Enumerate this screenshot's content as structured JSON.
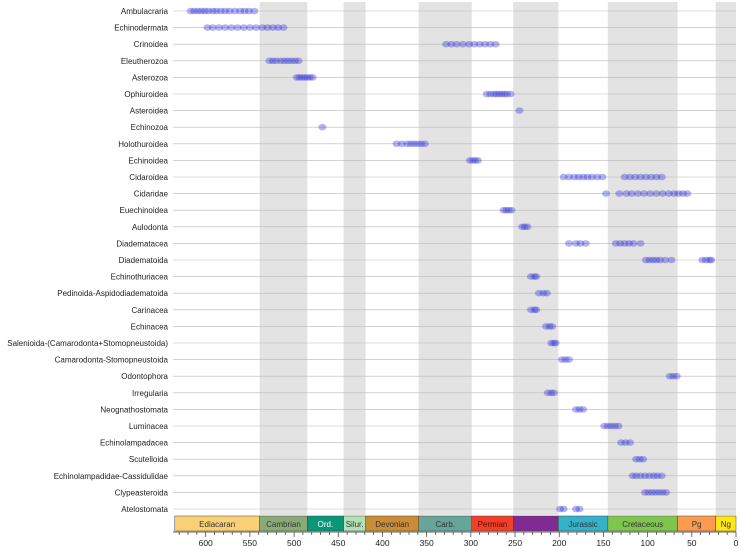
{
  "chart_data": {
    "type": "scatter",
    "title": "",
    "xlabel": "",
    "ylabel": "",
    "x_axis_reversed": true,
    "xlim": [
      637,
      0
    ],
    "x_ticks": [
      600,
      550,
      500,
      450,
      400,
      350,
      300,
      250,
      200,
      150,
      100,
      50,
      0
    ],
    "grid": "horizontal lines at each clade row",
    "point_color": "#3b3bd9",
    "periods": [
      {
        "name": "Ediacaran",
        "start": 635,
        "end": 539,
        "color": "#f9d077",
        "shaded": false
      },
      {
        "name": "Cambrian",
        "start": 539,
        "end": 485,
        "color": "#8aab78",
        "shaded": true
      },
      {
        "name": "Ord.",
        "start": 485,
        "end": 444,
        "color": "#0a9679",
        "shaded": false
      },
      {
        "name": "Silur.",
        "start": 444,
        "end": 419,
        "color": "#b3e1b6",
        "shaded": true
      },
      {
        "name": "Devonian",
        "start": 419,
        "end": 359,
        "color": "#cb8c37",
        "shaded": false
      },
      {
        "name": "Carb.",
        "start": 359,
        "end": 299,
        "color": "#67a599",
        "shaded": true
      },
      {
        "name": "Permian",
        "start": 299,
        "end": 252,
        "color": "#f04028",
        "shaded": false
      },
      {
        "name": "",
        "start": 252,
        "end": 201,
        "color": "#812b92",
        "shaded": true
      },
      {
        "name": "Jurassic",
        "start": 201,
        "end": 145,
        "color": "#34b2c9",
        "shaded": false
      },
      {
        "name": "Cretaceous",
        "start": 145,
        "end": 66,
        "color": "#7fc64e",
        "shaded": true
      },
      {
        "name": "Pg",
        "start": 66,
        "end": 23,
        "color": "#fd9a52",
        "shaded": false
      },
      {
        "name": "Ng",
        "start": 23,
        "end": 0,
        "color": "#ffe619",
        "shaded": true
      }
    ],
    "categories": [
      "Ambulacraria",
      "Echinodermata",
      "Crinoidea",
      "Eleutherozoa",
      "Asterozoa",
      "Ophiuroidea",
      "Asteroidea",
      "Echinozoa",
      "Holothuroidea",
      "Echinoidea",
      "Cidaroidea",
      "Cidaridae",
      "Euechinoidea",
      "Aulodonta",
      "Diadematacea",
      "Diadematoida",
      "Echinothuriacea",
      "Pedinoida-Aspidodiadematoida",
      "Carinacea",
      "Echinacea",
      "Salenioida-(Camarodonta+Stomopneustoida)",
      "Camarodonta-Stomopneustoida",
      "Odontophora",
      "Irregularia",
      "Neognathostomata",
      "Luminacea",
      "Echinolampadacea",
      "Scutelloida",
      "Echinolampadidae-Cassidulidae",
      "Clypeasteroida",
      "Atelostomata"
    ],
    "series": [
      {
        "values": [
          617,
          613,
          609,
          605,
          601,
          597,
          592,
          588,
          583,
          578,
          573,
          567,
          561,
          556,
          551,
          545
        ]
      },
      {
        "values": [
          598,
          592,
          585,
          578,
          571,
          564,
          557,
          550,
          543,
          536,
          530,
          524,
          518,
          512
        ]
      },
      {
        "values": [
          328,
          322,
          316,
          309,
          302,
          296,
          290,
          284,
          278,
          272
        ]
      },
      {
        "values": [
          528,
          524,
          520,
          515,
          511,
          507,
          503,
          499,
          495
        ]
      },
      {
        "values": [
          497,
          494,
          491,
          488,
          485,
          482,
          479
        ]
      },
      {
        "values": [
          282,
          278,
          274,
          271,
          268,
          265,
          262,
          259,
          255
        ]
      },
      {
        "values": [
          245
        ]
      },
      {
        "values": [
          468
        ]
      },
      {
        "values": [
          384,
          378,
          372,
          368,
          364,
          360,
          356,
          352
        ]
      },
      {
        "values": [
          301,
          298,
          295,
          292
        ]
      },
      {
        "values": [
          195,
          189,
          183,
          178,
          173,
          168,
          163,
          157,
          151,
          126,
          120,
          114,
          108,
          102,
          96,
          90,
          84
        ]
      },
      {
        "values": [
          147,
          132,
          124,
          118,
          111,
          104,
          97,
          90,
          83,
          76,
          70,
          65,
          60,
          55
        ]
      },
      {
        "values": [
          263,
          260,
          257,
          254
        ]
      },
      {
        "values": [
          242,
          239,
          236
        ]
      },
      {
        "values": [
          189,
          181,
          176,
          170,
          136,
          131,
          126,
          121,
          116,
          108
        ]
      },
      {
        "values": [
          102,
          98,
          94,
          90,
          86,
          80,
          73,
          38,
          34,
          30,
          28
        ]
      },
      {
        "values": [
          232,
          228,
          226
        ]
      },
      {
        "values": [
          223,
          218,
          214
        ]
      },
      {
        "values": [
          232,
          228,
          226
        ]
      },
      {
        "values": [
          215,
          211,
          208
        ]
      },
      {
        "values": [
          209,
          206,
          204
        ]
      },
      {
        "values": [
          197,
          193,
          189
        ]
      },
      {
        "values": [
          75,
          71,
          67
        ]
      },
      {
        "values": [
          213,
          209,
          206
        ]
      },
      {
        "values": [
          181,
          177,
          173
        ]
      },
      {
        "values": [
          149,
          145,
          141,
          137,
          133
        ]
      },
      {
        "values": [
          130,
          125,
          120
        ]
      },
      {
        "values": [
          113,
          109,
          105
        ]
      },
      {
        "values": [
          117,
          113,
          108,
          103,
          98,
          93,
          89,
          84
        ]
      },
      {
        "values": [
          103,
          99,
          95,
          91,
          87,
          83,
          79
        ]
      },
      {
        "values": [
          199,
          195,
          181,
          177
        ]
      }
    ]
  }
}
